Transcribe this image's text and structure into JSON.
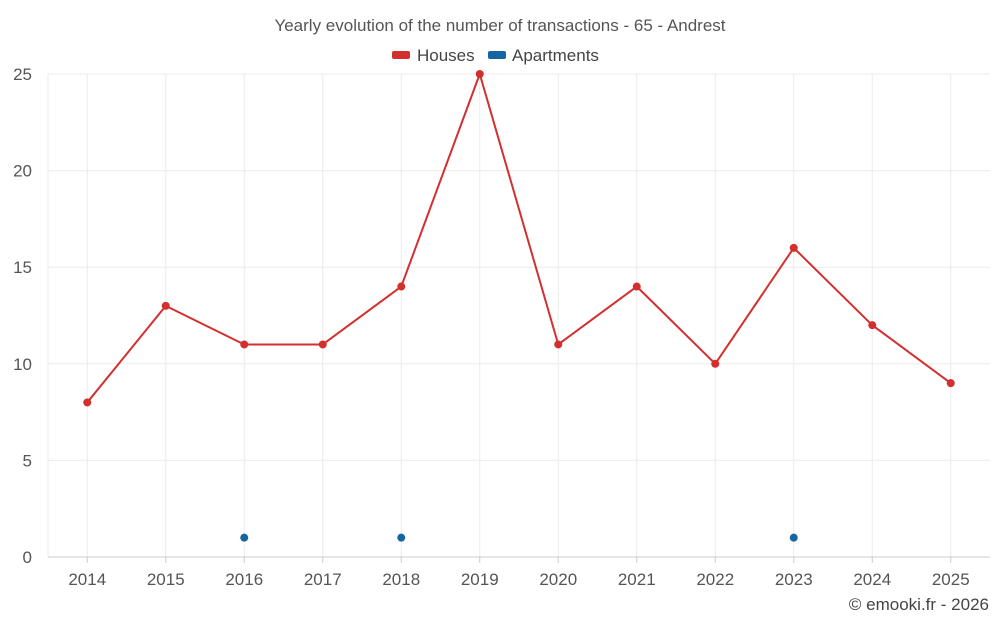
{
  "chart_data": {
    "type": "line",
    "title": "Yearly evolution of the number of transactions - 65 - Andrest",
    "xlabel": "",
    "ylabel": "",
    "categories": [
      "2014",
      "2015",
      "2016",
      "2017",
      "2018",
      "2019",
      "2020",
      "2021",
      "2022",
      "2023",
      "2024",
      "2025"
    ],
    "ylim": [
      0,
      25
    ],
    "yticks": [
      0,
      5,
      10,
      15,
      20,
      25
    ],
    "grid": true,
    "legend_position": "top-center",
    "series": [
      {
        "name": "Houses",
        "color": "#d32f2f",
        "style": "line-with-markers",
        "values": [
          8,
          13,
          11,
          11,
          14,
          25,
          11,
          14,
          10,
          16,
          12,
          9
        ]
      },
      {
        "name": "Apartments",
        "color": "#1565a0",
        "style": "markers-only",
        "values": [
          null,
          null,
          1,
          null,
          1,
          null,
          null,
          null,
          null,
          1,
          null,
          null
        ]
      }
    ],
    "credit": "© emooki.fr - 2026"
  }
}
